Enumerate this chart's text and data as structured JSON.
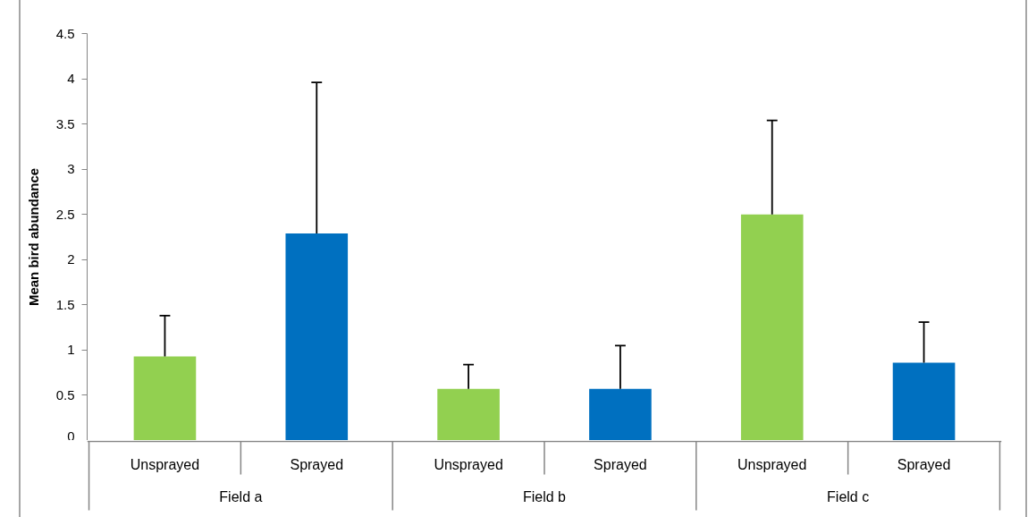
{
  "chart_data": {
    "type": "bar",
    "ylabel": "Mean bird abundance",
    "categories": [
      "Field a",
      "Field b",
      "Field c"
    ],
    "series": [
      {
        "name": "Unsprayed",
        "color": "#92d050",
        "values": [
          0.93,
          0.57,
          2.5
        ],
        "errors": [
          [
            0.93,
            1.38
          ],
          [
            0.57,
            0.84
          ],
          [
            2.5,
            3.54
          ]
        ]
      },
      {
        "name": "Sprayed",
        "color": "#0070c0",
        "values": [
          2.29,
          0.57,
          0.86
        ],
        "errors": [
          [
            2.29,
            3.96
          ],
          [
            0.57,
            1.05
          ],
          [
            0.86,
            1.31
          ]
        ]
      }
    ],
    "ylim": [
      0,
      4.5
    ],
    "yticks": [
      0,
      0.5,
      1,
      1.5,
      2,
      2.5,
      3,
      3.5,
      4,
      4.5
    ],
    "grid": false,
    "legend": false
  }
}
